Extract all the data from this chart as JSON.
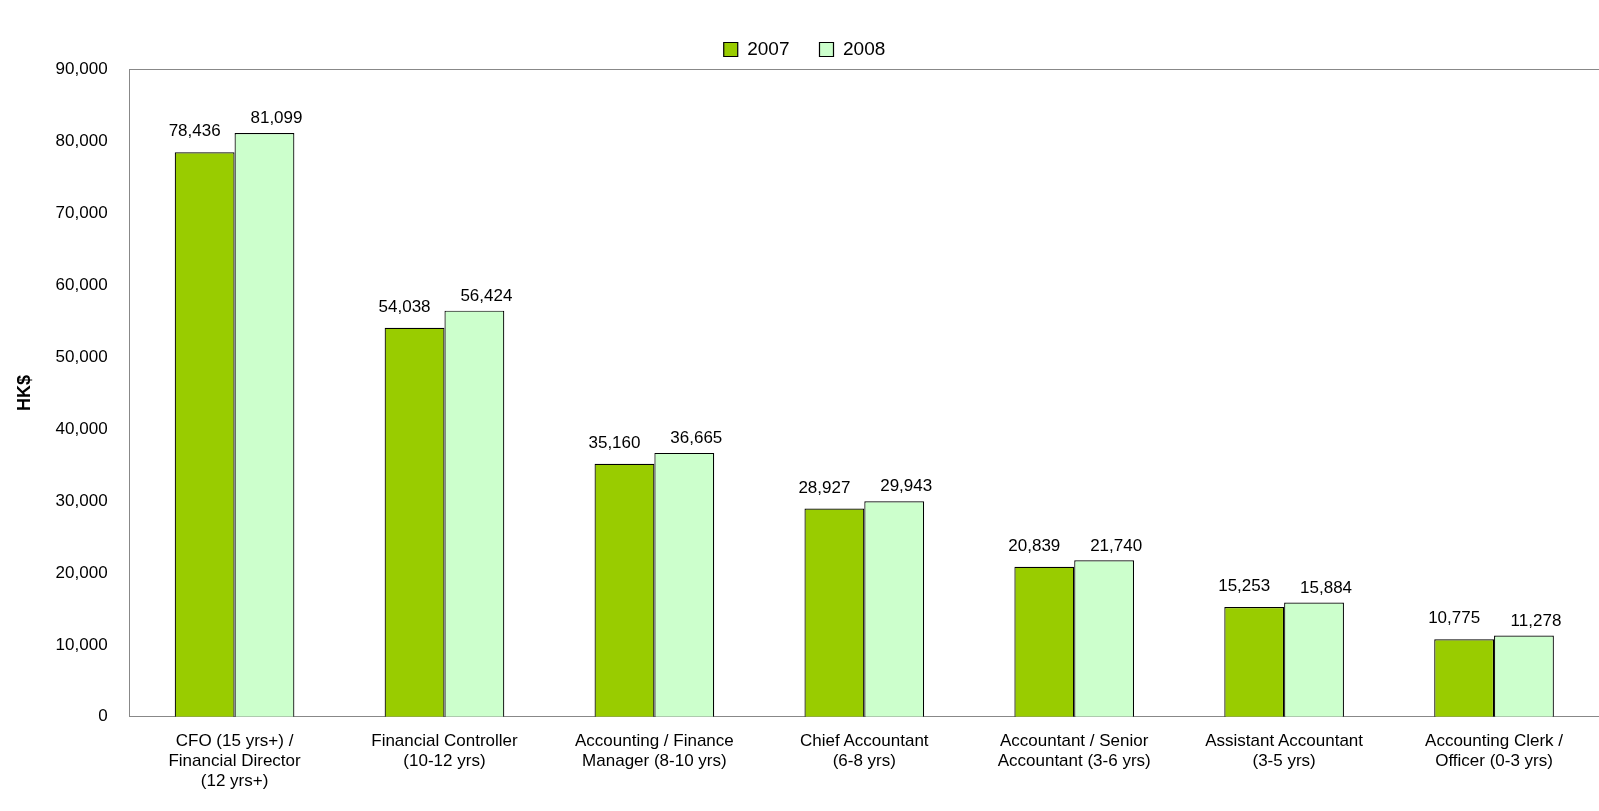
{
  "chart_data": {
    "type": "bar",
    "ylabel": "HK$",
    "categories": [
      "CFO (15 yrs+) / Financial Director (12 yrs+)",
      "Financial Controller (10-12 yrs)",
      "Accounting / Finance Manager (8-10 yrs)",
      "Chief Accountant (6-8 yrs)",
      "Accountant / Senior Accountant (3-6 yrs)",
      "Assistant Accountant (3-5 yrs)",
      "Accounting Clerk / Officer (0-3 yrs)"
    ],
    "series": [
      {
        "name": "2007",
        "color": "#99cc00",
        "values": [
          78436,
          54038,
          35160,
          28927,
          20839,
          15253,
          10775
        ],
        "value_labels": [
          "78,436",
          "54,038",
          "35,160",
          "28,927",
          "20,839",
          "15,253",
          "10,775"
        ]
      },
      {
        "name": "2008",
        "color": "#ccffcc",
        "values": [
          81099,
          56424,
          36665,
          29943,
          21740,
          15884,
          11278
        ],
        "value_labels": [
          "81,099",
          "56,424",
          "36,665",
          "29,943",
          "21,740",
          "15,884",
          "11,278"
        ]
      }
    ],
    "ylim": [
      0,
      90000
    ],
    "yticks": [
      0,
      {
        "value": 10000,
        "label": "10,000"
      },
      {
        "value": 20000,
        "label": "20,000"
      },
      {
        "value": 30000,
        "label": "30,000"
      },
      {
        "value": 40000,
        "label": "40,000"
      },
      {
        "value": 50000,
        "label": "50,000"
      },
      {
        "value": 60000,
        "label": "60,000"
      },
      {
        "value": 70000,
        "label": "70,000"
      },
      {
        "value": 80000,
        "label": "80,000"
      },
      {
        "value": 90000,
        "label": "90,000"
      }
    ],
    "grid": false,
    "legend": "top"
  }
}
